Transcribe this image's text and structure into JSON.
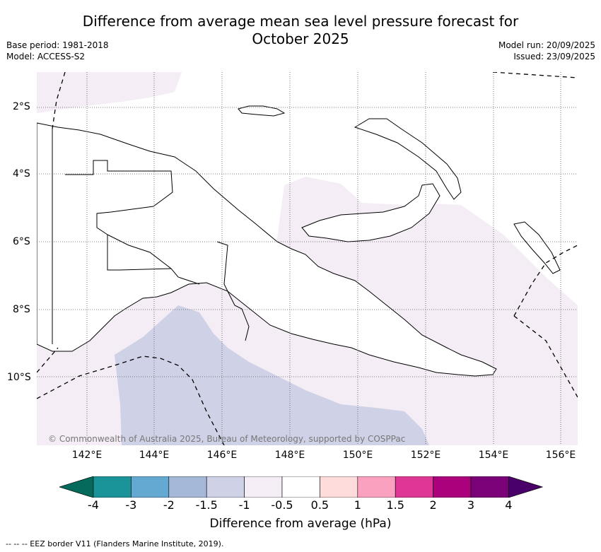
{
  "title_line1": "Difference from average mean sea level pressure forecast for",
  "title_line2": "October 2025",
  "meta": {
    "base_period": "Base period: 1981-2018",
    "model": "Model: ACCESS-S2",
    "model_run": "Model run: 20/09/2025",
    "issued": "Issued: 23/09/2025"
  },
  "map": {
    "lat_labels": [
      "2°S",
      "4°S",
      "6°S",
      "8°S",
      "10°S"
    ],
    "lon_labels": [
      "142°E",
      "144°E",
      "146°E",
      "148°E",
      "150°E",
      "152°E",
      "154°E",
      "156°E"
    ],
    "copyright": "© Commonwealth of Australia 2025, Bureau of Meteorology, supported by COSPPac",
    "colors": {
      "anomaly_neg_1_5_to_neg_1": "#cfd1e6",
      "anomaly_neg_1_to_neg_0_5": "#f4edf5",
      "land": "#ffffff"
    }
  },
  "colorbar": {
    "title": "Difference from average (hPa)",
    "tick_labels": [
      "-4",
      "-3",
      "-2",
      "-1.5",
      "-1",
      "-0.5",
      "0.5",
      "1",
      "1.5",
      "2",
      "3",
      "4"
    ],
    "colors": [
      "#046a5c",
      "#1b9499",
      "#64a9d1",
      "#a6b8d8",
      "#cfd1e6",
      "#f4edf5",
      "#ffffff",
      "#fedcdc",
      "#f9a1be",
      "#df3795",
      "#ac017d",
      "#7b0178",
      "#4a0069"
    ]
  },
  "footnote": "--  --  -- EEZ border V11 (Flanders Marine Institute, 2019)."
}
